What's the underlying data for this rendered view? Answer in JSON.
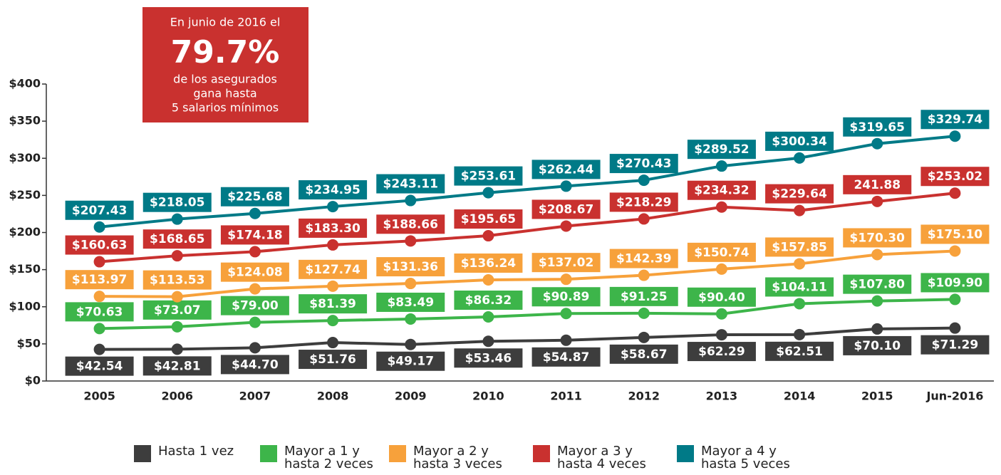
{
  "chart_data": {
    "type": "line",
    "annotation": {
      "lines": [
        "En junio de 2016 el",
        "79.7%",
        "de los asegurados",
        "gana hasta",
        "5 salarios mínimos"
      ],
      "color": "#c9312f"
    },
    "categories": [
      "2005",
      "2006",
      "2007",
      "2008",
      "2009",
      "2010",
      "2011",
      "2012",
      "2013",
      "2014",
      "2015",
      "Jun-2016"
    ],
    "ylim": [
      0,
      400
    ],
    "yticks": [
      {
        "value": 0,
        "label": "$0"
      },
      {
        "value": 50,
        "label": "$50"
      },
      {
        "value": 100,
        "label": "$100"
      },
      {
        "value": 150,
        "label": "$150"
      },
      {
        "value": 200,
        "label": "$200"
      },
      {
        "value": 250,
        "label": "$250"
      },
      {
        "value": 300,
        "label": "$300"
      },
      {
        "value": 350,
        "label": "$350"
      },
      {
        "value": 400,
        "label": "$400"
      }
    ],
    "series": [
      {
        "name": "Hasta 1 vez",
        "color": "#3d3d3d",
        "label_position": "below",
        "values": [
          42.54,
          42.81,
          44.7,
          51.76,
          49.17,
          53.46,
          54.87,
          58.67,
          62.29,
          62.51,
          70.1,
          71.29
        ],
        "value_labels": [
          "$42.54",
          "$42.81",
          "$44.70",
          "$51.76",
          "$49.17",
          "$53.46",
          "$54.87",
          "$58.67",
          "$62.29",
          "$62.51",
          "$70.10",
          "$71.29"
        ]
      },
      {
        "name": "Mayor a 1 y hasta 2 veces",
        "color": "#3db54a",
        "label_position": "above",
        "values": [
          70.63,
          73.07,
          79.0,
          81.39,
          83.49,
          86.32,
          90.89,
          91.25,
          90.4,
          104.11,
          107.8,
          109.9
        ],
        "value_labels": [
          "$70.63",
          "$73.07",
          "$79.00",
          "$81.39",
          "$83.49",
          "$86.32",
          "$90.89",
          "$91.25",
          "$90.40",
          "$104.11",
          "$107.80",
          "$109.90"
        ]
      },
      {
        "name": "Mayor a 2 y hasta 3 veces",
        "color": "#f7a13b",
        "label_position": "above",
        "values": [
          113.97,
          113.53,
          124.08,
          127.74,
          131.36,
          136.24,
          137.02,
          142.39,
          150.74,
          157.85,
          170.3,
          175.1
        ],
        "value_labels": [
          "$113.97",
          "$113.53",
          "$124.08",
          "$127.74",
          "$131.36",
          "$136.24",
          "$137.02",
          "$142.39",
          "$150.74",
          "$157.85",
          "$170.30",
          "$175.10"
        ]
      },
      {
        "name": "Mayor a 3 y hasta 4 veces",
        "color": "#c9312f",
        "label_position": "above",
        "values": [
          160.63,
          168.65,
          174.18,
          183.3,
          188.66,
          195.65,
          208.67,
          218.29,
          234.32,
          229.64,
          241.88,
          253.02
        ],
        "value_labels": [
          "$160.63",
          "$168.65",
          "$174.18",
          "$183.30",
          "$188.66",
          "$195.65",
          "$208.67",
          "$218.29",
          "$234.32",
          "$229.64",
          "241.88",
          "$253.02"
        ]
      },
      {
        "name": "Mayor a 4 y hasta 5 veces",
        "color": "#007a87",
        "label_position": "above",
        "values": [
          207.43,
          218.05,
          225.68,
          234.95,
          243.11,
          253.61,
          262.44,
          270.43,
          289.52,
          300.34,
          319.65,
          329.74
        ],
        "value_labels": [
          "$207.43",
          "$218.05",
          "$225.68",
          "$234.95",
          "$243.11",
          "$253.61",
          "$262.44",
          "$270.43",
          "$289.52",
          "$300.34",
          "$319.65",
          "$329.74"
        ]
      }
    ]
  }
}
